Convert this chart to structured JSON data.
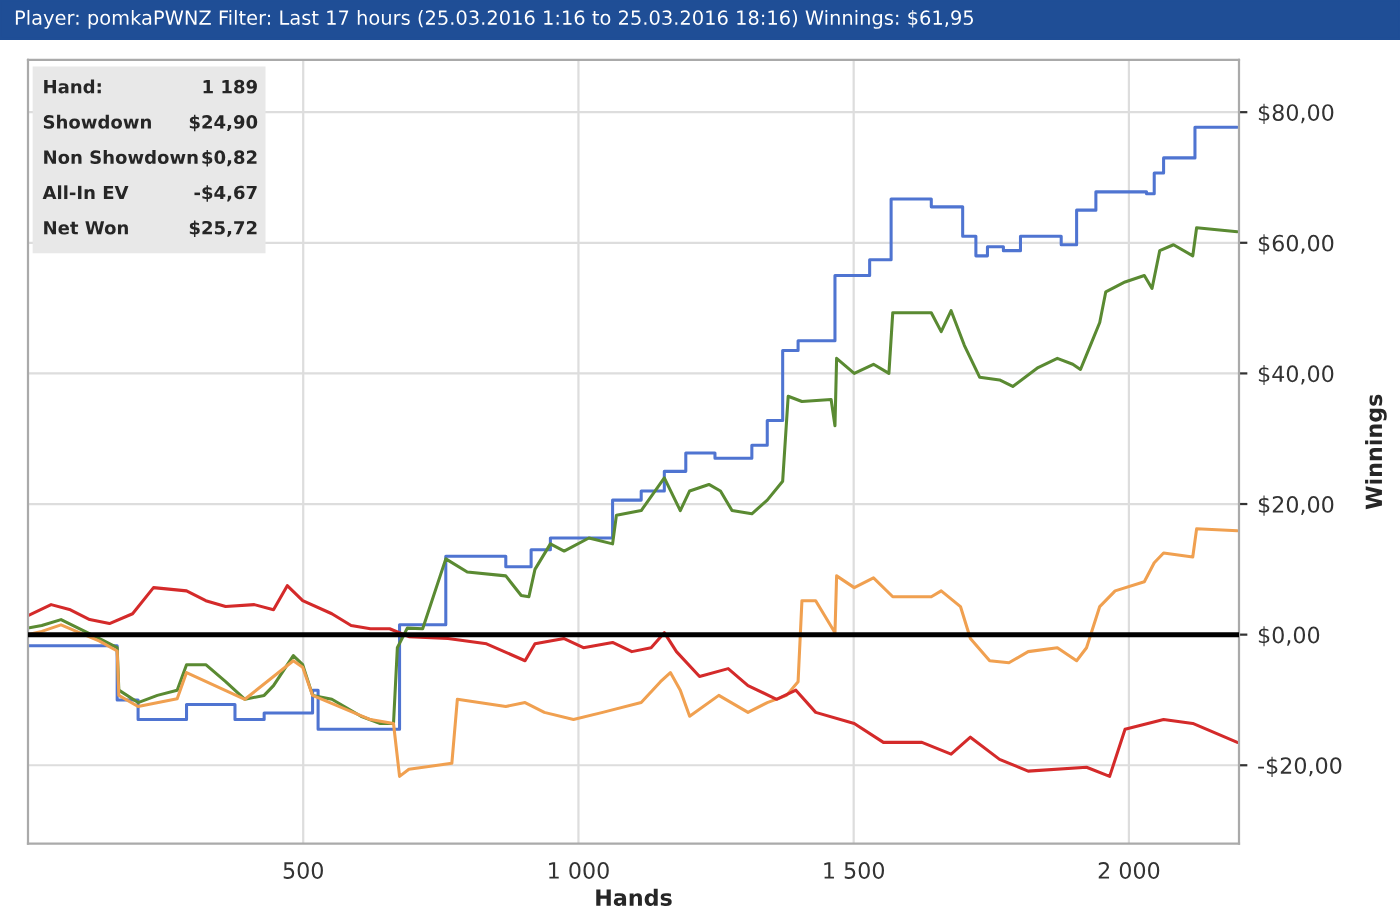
{
  "chart_data": {
    "type": "line",
    "title": "Player: pomkaPWNZ Filter: Last 17 hours (25.03.2016 1:16 to 25.03.2016 18:16) Winnings: $61,95",
    "xlabel": "Hands",
    "ylabel": "Winnings",
    "xlim": [
      0,
      2200
    ],
    "xticks": [
      {
        "value": 500,
        "label": "500"
      },
      {
        "value": 1000,
        "label": "1 000"
      },
      {
        "value": 1500,
        "label": "1 500"
      },
      {
        "value": 2000,
        "label": "2 000"
      }
    ],
    "ylim": [
      -32,
      88
    ],
    "yticks": [
      {
        "value": -20,
        "label": "-$20,00"
      },
      {
        "value": 0,
        "label": "$0,00"
      },
      {
        "value": 20,
        "label": "$20,00"
      },
      {
        "value": 40,
        "label": "$40,00"
      },
      {
        "value": 60,
        "label": "$60,00"
      },
      {
        "value": 80,
        "label": "$80,00"
      }
    ],
    "grid": true,
    "legend": false,
    "ref_lines": [
      {
        "axis": "y",
        "value": 0,
        "color": "#000000"
      }
    ],
    "annotations": [
      "Hand:",
      "1 189",
      "Showdown",
      "$24,90",
      "Non Showdown",
      "$0,82",
      "All-In EV",
      "-$4,67",
      "Net Won",
      "$25,72"
    ],
    "series": [
      {
        "type": "step",
        "color": "#4f74d1",
        "x": [
          0,
          162,
          200,
          288,
          376,
          429,
          517,
          527,
          675,
          759,
          868,
          914,
          949,
          1062,
          1114,
          1156,
          1195,
          1248,
          1315,
          1343,
          1371,
          1399,
          1466,
          1529,
          1568,
          1641,
          1698,
          1722,
          1743,
          1772,
          1803,
          1877,
          1905,
          1940,
          2032,
          2046,
          2063,
          2120,
          2197
        ],
        "values": [
          -1.7,
          -10,
          -13,
          -10.7,
          -13,
          -12,
          -8.5,
          -14.5,
          1.5,
          12,
          10.4,
          13,
          14.8,
          20.6,
          22,
          25,
          27.8,
          27,
          29,
          32.8,
          43.5,
          45,
          55,
          57.4,
          66.7,
          65.5,
          61,
          58,
          59.4,
          58.8,
          61,
          59.7,
          65,
          67.8,
          67.5,
          70.7,
          73,
          77.7,
          77.7
        ]
      },
      {
        "color": "#5a8a32",
        "x": [
          0,
          25,
          60,
          130,
          162,
          165,
          200,
          235,
          271,
          288,
          323,
          359,
          394,
          429,
          446,
          482,
          499,
          517,
          552,
          605,
          640,
          664,
          671,
          689,
          717,
          759,
          798,
          868,
          896,
          910,
          921,
          949,
          974,
          1019,
          1062,
          1069,
          1114,
          1156,
          1185,
          1202,
          1237,
          1258,
          1279,
          1315,
          1343,
          1371,
          1381,
          1406,
          1459,
          1466,
          1469,
          1501,
          1536,
          1564,
          1571,
          1641,
          1659,
          1677,
          1701,
          1729,
          1765,
          1789,
          1835,
          1870,
          1898,
          1912,
          1930,
          1947,
          1958,
          1993,
          2028,
          2042,
          2056,
          2081,
          2116,
          2123,
          2197
        ],
        "values": [
          1,
          1.4,
          2.3,
          -0.6,
          -2,
          -8.5,
          -10.4,
          -9.3,
          -8.5,
          -4.6,
          -4.6,
          -7.2,
          -9.9,
          -9.3,
          -7.8,
          -3.2,
          -4.6,
          -9.3,
          -9.9,
          -12.5,
          -13.6,
          -13.6,
          -2,
          1,
          0.9,
          11.6,
          9.6,
          9,
          6,
          5.8,
          10,
          13.9,
          12.8,
          14.8,
          13.9,
          18.3,
          19,
          24,
          19,
          22,
          23,
          22,
          19,
          18.5,
          20.6,
          23.5,
          36.5,
          35.7,
          36,
          32,
          42.3,
          40,
          41.4,
          40,
          49.3,
          49.3,
          46.4,
          49.6,
          44.3,
          39.4,
          39,
          38,
          40.9,
          42.3,
          41.4,
          40.6,
          44.3,
          47.8,
          52.5,
          54,
          55,
          53,
          58.8,
          59.7,
          58,
          62.3,
          61.7
        ]
      },
      {
        "color": "#f0a050",
        "x": [
          0,
          25,
          60,
          130,
          162,
          165,
          200,
          271,
          288,
          394,
          482,
          499,
          517,
          622,
          664,
          675,
          692,
          770,
          780,
          868,
          903,
          938,
          991,
          1044,
          1114,
          1149,
          1167,
          1185,
          1202,
          1255,
          1308,
          1343,
          1378,
          1399,
          1406,
          1431,
          1466,
          1469,
          1501,
          1536,
          1571,
          1641,
          1659,
          1694,
          1712,
          1747,
          1782,
          1817,
          1870,
          1905,
          1923,
          1947,
          1975,
          2028,
          2046,
          2063,
          2116,
          2123,
          2197
        ],
        "values": [
          0,
          0.5,
          1.5,
          -1,
          -2.5,
          -9.3,
          -11,
          -9.8,
          -5.8,
          -9.9,
          -4,
          -5,
          -9.3,
          -13,
          -13.6,
          -21.7,
          -20.6,
          -19.7,
          -9.9,
          -11,
          -10.4,
          -11.9,
          -13,
          -11.9,
          -10.4,
          -7.2,
          -5.8,
          -8.5,
          -12.5,
          -9.3,
          -11.9,
          -10.4,
          -9.3,
          -7.2,
          5.2,
          5.2,
          0.3,
          9,
          7.2,
          8.7,
          5.8,
          5.8,
          6.7,
          4.3,
          -0.6,
          -4,
          -4.3,
          -2.6,
          -2,
          -4,
          -2,
          4.3,
          6.7,
          8.1,
          11,
          12.5,
          11.9,
          16.2,
          15.9
        ]
      },
      {
        "color": "#d42a2a",
        "x": [
          0,
          42,
          77,
          112,
          148,
          190,
          228,
          288,
          323,
          359,
          411,
          446,
          471,
          499,
          552,
          587,
          622,
          657,
          692,
          763,
          833,
          903,
          921,
          974,
          1009,
          1062,
          1097,
          1132,
          1156,
          1178,
          1220,
          1272,
          1308,
          1360,
          1395,
          1431,
          1501,
          1554,
          1624,
          1677,
          1712,
          1765,
          1817,
          1923,
          1965,
          1993,
          2063,
          2116,
          2197
        ],
        "values": [
          2.9,
          4.6,
          3.8,
          2.3,
          1.7,
          3.2,
          7.2,
          6.7,
          5.2,
          4.3,
          4.6,
          3.8,
          7.5,
          5.2,
          3.2,
          1.4,
          0.9,
          0.9,
          -0.3,
          -0.6,
          -1.4,
          -4,
          -1.4,
          -0.6,
          -2,
          -1.2,
          -2.6,
          -2,
          0.3,
          -2.6,
          -6.4,
          -5.2,
          -7.8,
          -9.9,
          -8.5,
          -11.9,
          -13.6,
          -16.5,
          -16.5,
          -18.3,
          -15.7,
          -19.1,
          -20.9,
          -20.3,
          -21.7,
          -14.5,
          -13,
          -13.6,
          -16.5
        ]
      }
    ]
  }
}
